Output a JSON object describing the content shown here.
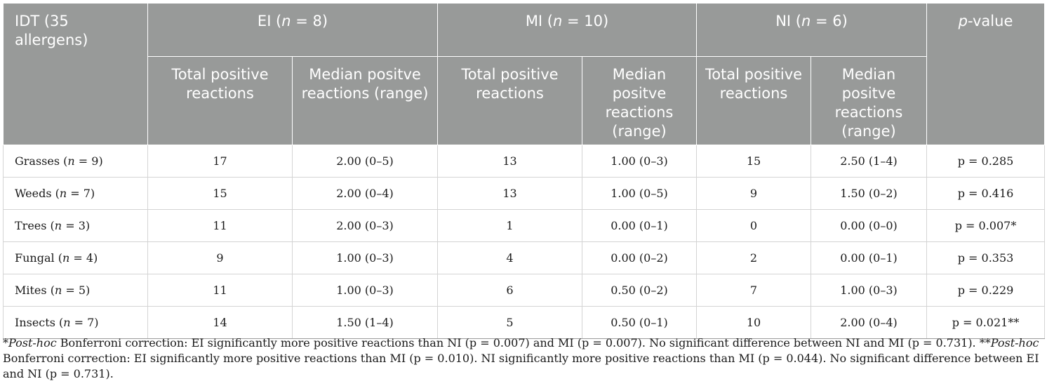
{
  "header": {
    "idt_label": "IDT (35 allergens)",
    "groups": [
      {
        "prefix": "EI (",
        "n_label": "n",
        "suffix": " = 8)"
      },
      {
        "prefix": "MI (",
        "n_label": "n",
        "suffix": " = 10)"
      },
      {
        "prefix": "NI (",
        "n_label": "n",
        "suffix": " = 6)"
      }
    ],
    "pvalue": {
      "italic": "p",
      "rest": "-value"
    },
    "sub_total": "Total positive reactions",
    "sub_median": "Median positve reactions (range)"
  },
  "rows": [
    {
      "name": "Grasses (",
      "n_label": "n",
      "n_value": " = 9)",
      "ei_total": "17",
      "ei_median": "2.00 (0–5)",
      "mi_total": "13",
      "mi_median": "1.00 (0–3)",
      "ni_total": "15",
      "ni_median": "2.50 (1–4)",
      "p": "p = 0.285"
    },
    {
      "name": "Weeds (",
      "n_label": "n",
      "n_value": " = 7)",
      "ei_total": "15",
      "ei_median": "2.00 (0–4)",
      "mi_total": "13",
      "mi_median": "1.00 (0–5)",
      "ni_total": "9",
      "ni_median": "1.50 (0–2)",
      "p": "p = 0.416"
    },
    {
      "name": "Trees (",
      "n_label": "n",
      "n_value": " = 3)",
      "ei_total": "11",
      "ei_median": "2.00 (0–3)",
      "mi_total": "1",
      "mi_median": "0.00 (0–1)",
      "ni_total": "0",
      "ni_median": "0.00 (0–0)",
      "p": "p = 0.007*"
    },
    {
      "name": "Fungal (",
      "n_label": "n",
      "n_value": " = 4)",
      "ei_total": "9",
      "ei_median": "1.00 (0–3)",
      "mi_total": "4",
      "mi_median": "0.00 (0–2)",
      "ni_total": "2",
      "ni_median": "0.00 (0–1)",
      "p": "p = 0.353"
    },
    {
      "name": "Mites (",
      "n_label": "n",
      "n_value": " = 5)",
      "ei_total": "11",
      "ei_median": "1.00 (0–3)",
      "mi_total": "6",
      "mi_median": "0.50 (0–2)",
      "ni_total": "7",
      "ni_median": "1.00 (0–3)",
      "p": "p = 0.229"
    },
    {
      "name": "Insects (",
      "n_label": "n",
      "n_value": " = 7)",
      "ei_total": "14",
      "ei_median": "1.50 (1–4)",
      "mi_total": "5",
      "mi_median": "0.50 (0–1)",
      "ni_total": "10",
      "ni_median": "2.00 (0–4)",
      "p": "p = 0.021**"
    }
  ],
  "footnote": {
    "mark1": "*",
    "italic1": "Post-hoc",
    "text1": " Bonferroni correction: EI significantly more positive reactions than NI (p = 0.007) and MI (p = 0.007). No significant difference between NI and MI (p = 0.731). ",
    "mark2": "**",
    "italic2": "Post-hoc",
    "text2": " Bonferroni correction: EI significantly more positive reactions than MI (p = 0.010). NI significantly more positive reactions than MI (p = 0.044). No significant difference between EI and NI (p = 0.731)."
  },
  "colors": {
    "header_bg": "#989a99",
    "header_text": "#ffffff",
    "grid": "#d4d4d4"
  }
}
